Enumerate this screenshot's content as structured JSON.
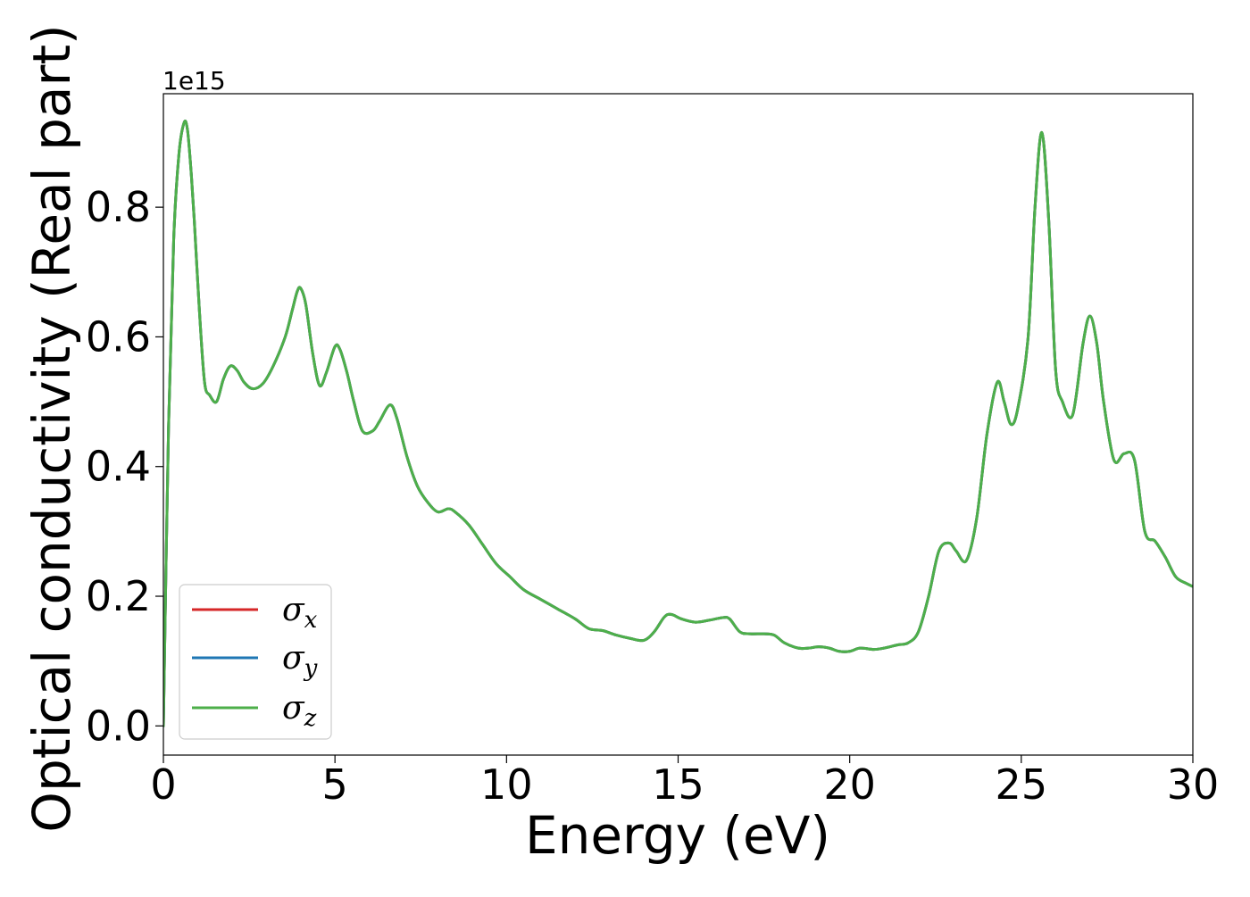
{
  "chart_data": {
    "type": "line",
    "xlabel": "Energy (eV)",
    "ylabel": "Optical conductivity (Real part)",
    "y_offset_text": "1e15",
    "xlim": [
      0,
      30
    ],
    "ylim": [
      -0.045,
      0.975
    ],
    "x_ticks": [
      0,
      5,
      10,
      15,
      20,
      25,
      30
    ],
    "x_tick_labels": [
      "0",
      "5",
      "10",
      "15",
      "20",
      "25",
      "30"
    ],
    "y_ticks": [
      0.0,
      0.2,
      0.4,
      0.6,
      0.8
    ],
    "y_tick_labels": [
      "0.0",
      "0.2",
      "0.4",
      "0.6",
      "0.8"
    ],
    "grid": false,
    "legend_position": "lower-left",
    "series": [
      {
        "name": "σx",
        "symbol": "σ",
        "subscript": "x",
        "color": "#d62728"
      },
      {
        "name": "σy",
        "symbol": "σ",
        "subscript": "y",
        "color": "#1f77b4"
      },
      {
        "name": "σz",
        "symbol": "σ",
        "subscript": "z",
        "color": "#4daf4a"
      }
    ],
    "x": [
      0,
      0.15,
      0.3,
      0.45,
      0.6,
      0.7,
      0.8,
      0.9,
      1.05,
      1.2,
      1.35,
      1.55,
      1.75,
      1.95,
      2.15,
      2.35,
      2.6,
      2.9,
      3.2,
      3.55,
      3.75,
      3.9,
      4.0,
      4.15,
      4.35,
      4.55,
      4.75,
      5.0,
      5.15,
      5.35,
      5.55,
      5.8,
      6.1,
      6.3,
      6.6,
      6.8,
      7.1,
      7.4,
      7.7,
      8.0,
      8.3,
      8.5,
      8.9,
      9.3,
      9.7,
      10.1,
      10.5,
      11.0,
      11.5,
      12.0,
      12.4,
      12.8,
      13.2,
      13.6,
      14.0,
      14.3,
      14.6,
      14.8,
      15.1,
      15.5,
      15.9,
      16.3,
      16.5,
      16.8,
      17.1,
      17.5,
      17.8,
      18.1,
      18.5,
      18.8,
      19.1,
      19.4,
      19.7,
      20.0,
      20.3,
      20.7,
      21.0,
      21.4,
      21.7,
      22.0,
      22.3,
      22.6,
      22.9,
      23.1,
      23.4,
      23.7,
      24.0,
      24.3,
      24.5,
      24.7,
      24.9,
      25.2,
      25.4,
      25.6,
      25.8,
      26.0,
      26.2,
      26.5,
      26.8,
      27.0,
      27.2,
      27.4,
      27.7,
      28.0,
      28.3,
      28.6,
      28.9,
      29.2,
      29.5,
      29.8,
      30.0
    ],
    "values": [
      0.0,
      0.46,
      0.75,
      0.88,
      0.93,
      0.92,
      0.86,
      0.78,
      0.64,
      0.53,
      0.51,
      0.5,
      0.535,
      0.555,
      0.548,
      0.53,
      0.52,
      0.528,
      0.555,
      0.6,
      0.64,
      0.67,
      0.675,
      0.65,
      0.575,
      0.525,
      0.545,
      0.585,
      0.58,
      0.545,
      0.5,
      0.455,
      0.455,
      0.47,
      0.495,
      0.475,
      0.415,
      0.37,
      0.345,
      0.33,
      0.335,
      0.33,
      0.31,
      0.28,
      0.25,
      0.23,
      0.21,
      0.195,
      0.18,
      0.165,
      0.15,
      0.147,
      0.14,
      0.135,
      0.132,
      0.145,
      0.168,
      0.172,
      0.165,
      0.16,
      0.163,
      0.167,
      0.165,
      0.145,
      0.142,
      0.142,
      0.14,
      0.128,
      0.12,
      0.12,
      0.122,
      0.12,
      0.115,
      0.115,
      0.12,
      0.118,
      0.12,
      0.125,
      0.128,
      0.145,
      0.2,
      0.27,
      0.282,
      0.27,
      0.255,
      0.32,
      0.45,
      0.53,
      0.5,
      0.465,
      0.49,
      0.6,
      0.8,
      0.915,
      0.78,
      0.55,
      0.5,
      0.48,
      0.59,
      0.632,
      0.59,
      0.5,
      0.41,
      0.42,
      0.41,
      0.3,
      0.285,
      0.26,
      0.23,
      0.22,
      0.215
    ]
  }
}
